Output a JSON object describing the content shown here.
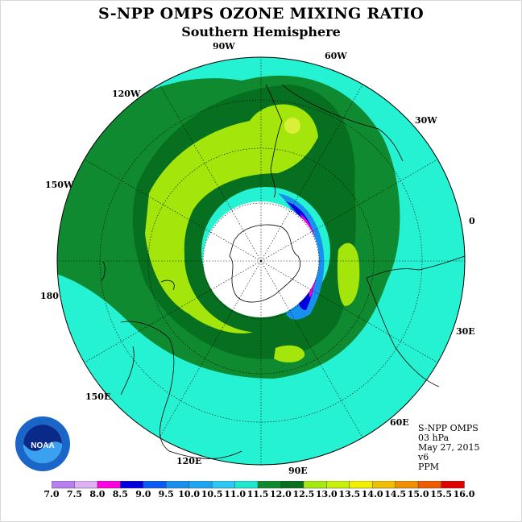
{
  "title": "S-NPP OMPS OZONE MIXING RATIO",
  "subtitle": "Southern Hemisphere",
  "longitude_labels": [
    "0",
    "30E",
    "60E",
    "90E",
    "120E",
    "150E",
    "180",
    "150W",
    "120W",
    "90W",
    "60W",
    "30W"
  ],
  "info": {
    "instrument": "S-NPP OMPS",
    "level": "03 hPa",
    "date": "May 27, 2015",
    "version": "v6",
    "units": "PPM"
  },
  "logo_text": "NOAA",
  "colorbar": {
    "ticks": [
      "7.0",
      "7.5",
      "8.0",
      "8.5",
      "9.0",
      "9.5",
      "10.0",
      "10.5",
      "11.0",
      "11.5",
      "12.0",
      "12.5",
      "13.0",
      "13.5",
      "14.0",
      "14.5",
      "15.0",
      "15.5",
      "16.0"
    ],
    "colors": [
      "#b77ff0",
      "#dfb0f6",
      "#ff00e0",
      "#0000dd",
      "#0a5af5",
      "#1891ee",
      "#1aa6f2",
      "#2bc8f7",
      "#1ee8d0",
      "#0f8a2c",
      "#06701e",
      "#a6e90e",
      "#c8f00a",
      "#f0f000",
      "#f0c000",
      "#f09000",
      "#f05a00",
      "#e00000",
      "#8a5a30"
    ]
  },
  "colors": {
    "cyan": "#25f2d2",
    "dark_green": "#108a30",
    "darker_green": "#067020",
    "light_green": "#a4e60c",
    "yellow_green": "#d8f038"
  }
}
